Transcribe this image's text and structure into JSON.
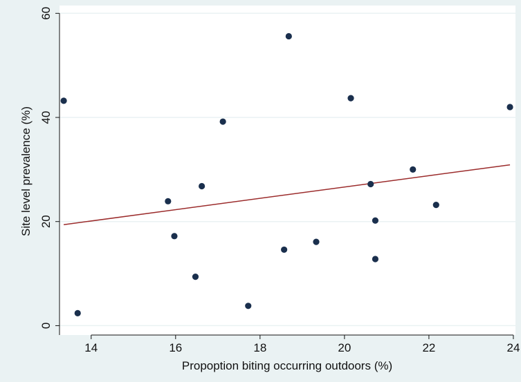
{
  "chart_data": {
    "type": "scatter",
    "xlabel": "Propoption biting occurring outdoors (%)",
    "ylabel": "Site level prevalence (%)",
    "xlim": [
      13.25,
      24.05
    ],
    "ylim": [
      -1.8,
      61.5
    ],
    "xticks": [
      14,
      16,
      18,
      20,
      22,
      24
    ],
    "yticks": [
      0,
      20,
      40,
      60
    ],
    "grid": true,
    "legend": "none",
    "colors": {
      "background": "#eaf2f3",
      "plot_area": "#ffffff",
      "gridline": "#eaf2f3",
      "points": "#1a2f4d",
      "fit_line": "#9b2b2b",
      "axis": "#111111"
    },
    "points": [
      {
        "x": 13.35,
        "y": 43.2
      },
      {
        "x": 13.68,
        "y": 2.4
      },
      {
        "x": 15.82,
        "y": 23.9
      },
      {
        "x": 15.97,
        "y": 17.2
      },
      {
        "x": 16.47,
        "y": 9.4
      },
      {
        "x": 16.62,
        "y": 26.8
      },
      {
        "x": 17.12,
        "y": 39.2
      },
      {
        "x": 17.72,
        "y": 3.8
      },
      {
        "x": 18.57,
        "y": 14.6
      },
      {
        "x": 18.68,
        "y": 55.6
      },
      {
        "x": 19.33,
        "y": 16.1
      },
      {
        "x": 20.15,
        "y": 43.7
      },
      {
        "x": 20.62,
        "y": 27.2
      },
      {
        "x": 20.73,
        "y": 20.2
      },
      {
        "x": 20.73,
        "y": 12.8
      },
      {
        "x": 21.62,
        "y": 30.0
      },
      {
        "x": 22.17,
        "y": 23.2
      },
      {
        "x": 23.92,
        "y": 42.0
      }
    ],
    "fit_line": [
      {
        "x": 13.35,
        "y": 19.4
      },
      {
        "x": 23.92,
        "y": 30.9
      }
    ]
  }
}
